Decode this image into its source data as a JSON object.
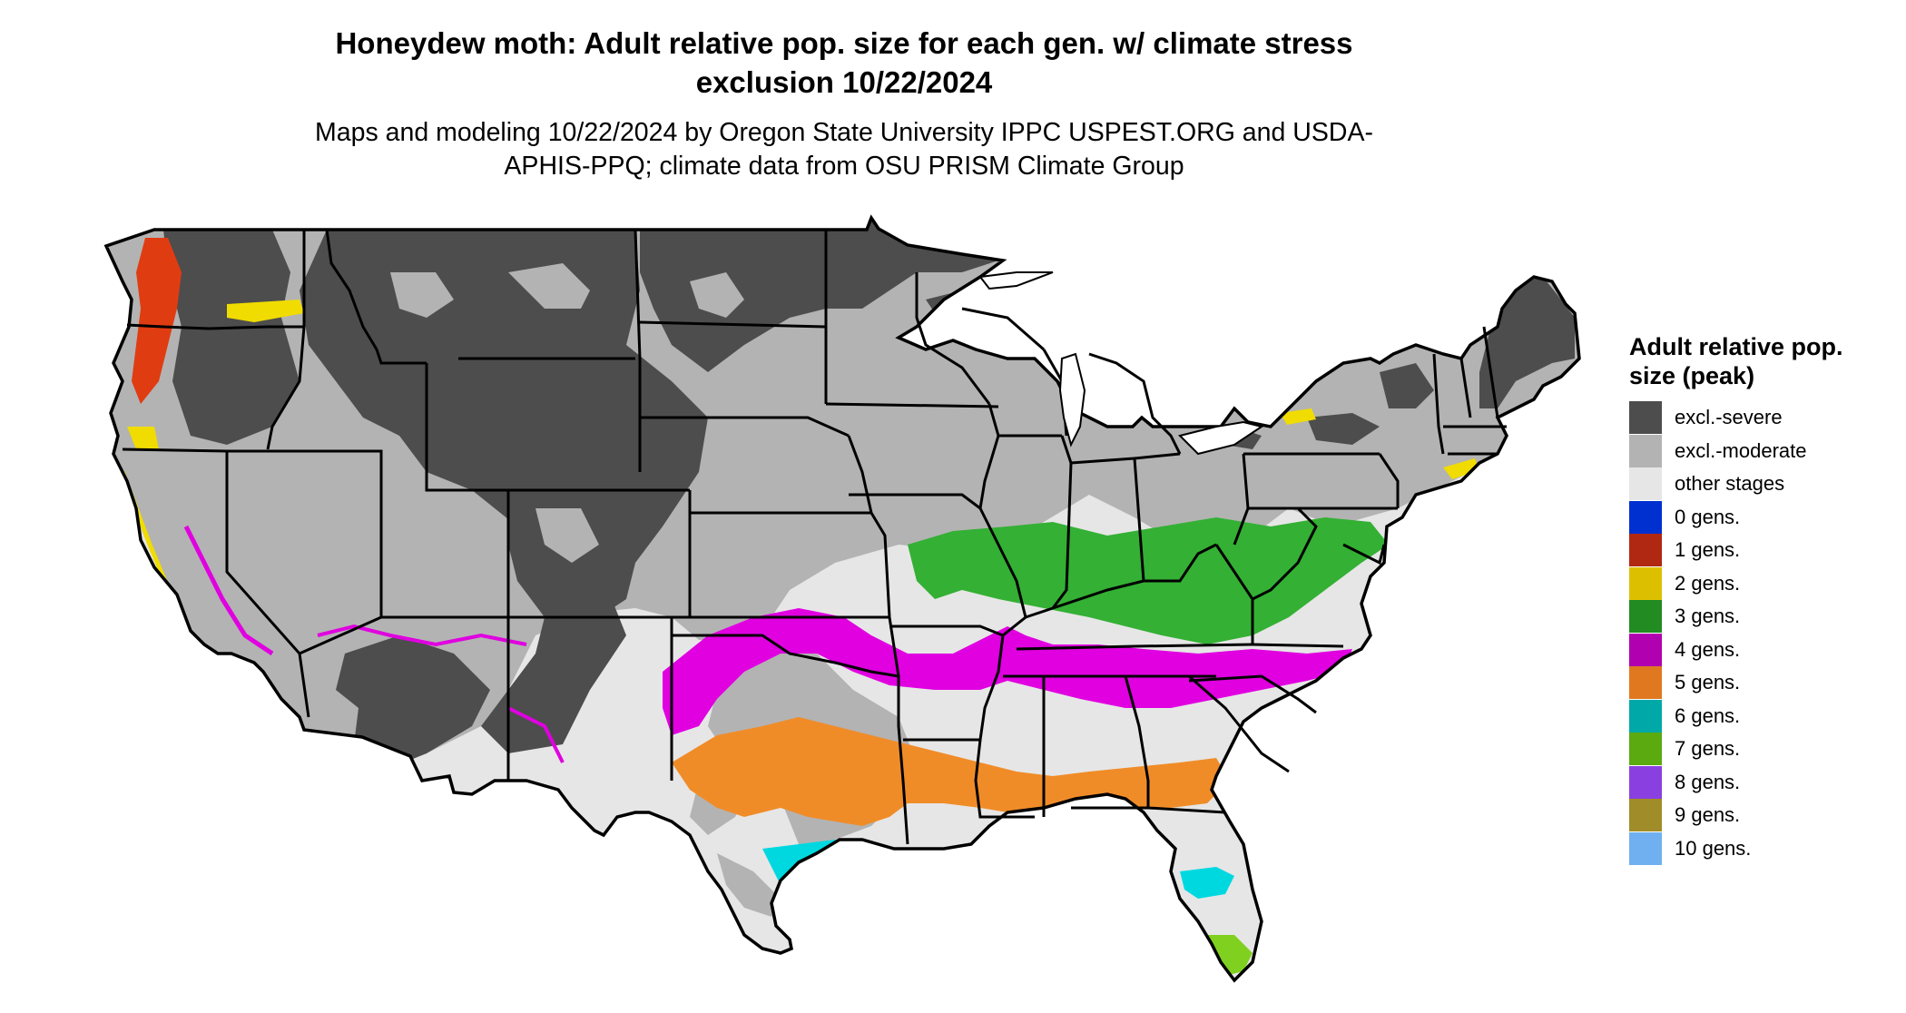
{
  "title": "Honeydew moth: Adult relative pop. size for each gen. w/ climate stress exclusion 10/22/2024",
  "subtitle": "Maps and modeling 10/22/2024 by Oregon State University IPPC USPEST.ORG and USDA-APHIS-PPQ; climate data from OSU PRISM Climate Group",
  "legend": {
    "title": "Adult relative pop. size (peak)",
    "items": [
      {
        "label": "excl.-severe",
        "color": "#4d4d4d"
      },
      {
        "label": "excl.-moderate",
        "color": "#b3b3b3"
      },
      {
        "label": "other stages",
        "color": "#e6e6e6"
      },
      {
        "label": "0 gens.",
        "color": "#0030d0"
      },
      {
        "label": "1 gens.",
        "color": "#b02812"
      },
      {
        "label": "2 gens.",
        "color": "#dcc000"
      },
      {
        "label": "3 gens.",
        "color": "#228b22"
      },
      {
        "label": "4 gens.",
        "color": "#b000b0"
      },
      {
        "label": "5 gens.",
        "color": "#e07820"
      },
      {
        "label": "6 gens.",
        "color": "#00a8a8"
      },
      {
        "label": "7 gens.",
        "color": "#5aaa10"
      },
      {
        "label": "8 gens.",
        "color": "#8a40e0"
      },
      {
        "label": "9 gens.",
        "color": "#a08c28"
      },
      {
        "label": "10 gens.",
        "color": "#70b0f0"
      }
    ]
  },
  "map": {
    "region": "Contiguous United States",
    "regions": [
      {
        "category": "other stages",
        "color": "#e6e6e6"
      },
      {
        "category": "excl.-moderate",
        "color": "#b3b3b3"
      },
      {
        "category": "excl.-severe",
        "color": "#4d4d4d"
      },
      {
        "category": "1 gens.",
        "color": "#e03c12"
      },
      {
        "category": "2 gens.",
        "color": "#f0dc00"
      },
      {
        "category": "3 gens.",
        "color": "#34b034"
      },
      {
        "category": "4 gens.",
        "color": "#e000e0"
      },
      {
        "category": "5 gens.",
        "color": "#f08c28"
      },
      {
        "category": "6 gens.",
        "color": "#00d8e0"
      },
      {
        "category": "7 gens.",
        "color": "#80d020"
      }
    ],
    "border_color": "#000000"
  }
}
